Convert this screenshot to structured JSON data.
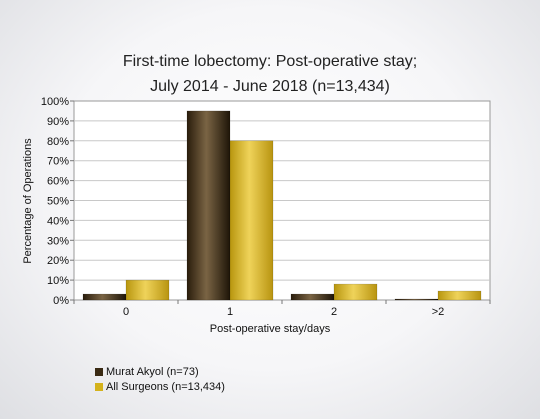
{
  "chart_data": {
    "type": "bar",
    "title_lines": [
      "First-time lobectomy: Post-operative stay;",
      "July 2014 - June 2018 (n=13,434)"
    ],
    "xlabel": "Post-operative stay/days",
    "ylabel": "Percentage of Operations",
    "categories": [
      "0",
      "1",
      "2",
      ">2"
    ],
    "ylim": [
      0,
      100
    ],
    "yticks": [
      "0%",
      "10%",
      "20%",
      "30%",
      "40%",
      "50%",
      "60%",
      "70%",
      "80%",
      "90%",
      "100%"
    ],
    "grid": true,
    "legend_position": "bottom-left",
    "series": [
      {
        "name": "Murat Akyol (n=73)",
        "values": [
          3,
          95,
          3,
          0.5
        ],
        "color": "#3a2a14"
      },
      {
        "name": "All Surgeons (n=13,434)",
        "values": [
          10,
          80,
          8,
          4.5
        ],
        "color": "#d4b21c"
      }
    ]
  }
}
